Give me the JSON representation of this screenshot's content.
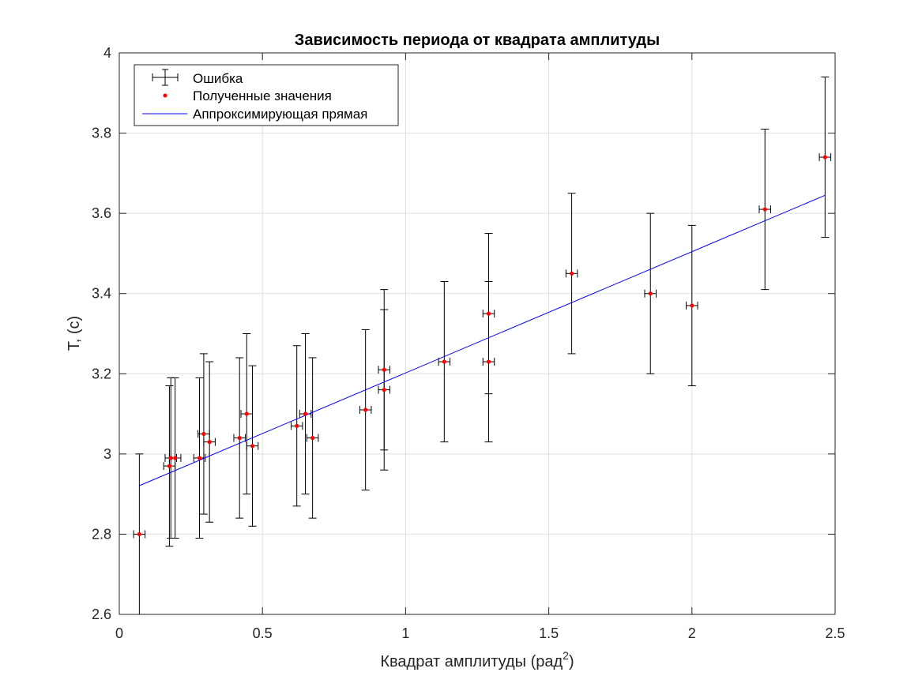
{
  "chart_data": {
    "type": "scatter",
    "title": "Зависимость периода от квадрата амплитуды",
    "xlabel": "Квадрат амплитуды (рад",
    "xlabel_sup": "2",
    "xlabel_end": ")",
    "ylabel": "T, (c)",
    "xlim": [
      0,
      2.5
    ],
    "ylim": [
      2.6,
      4.0
    ],
    "xticks": [
      0,
      0.5,
      1,
      1.5,
      2,
      2.5
    ],
    "xtick_labels": [
      "0",
      "0.5",
      "1",
      "1.5",
      "2",
      "2.5"
    ],
    "yticks": [
      2.6,
      2.8,
      3.0,
      3.2,
      3.4,
      3.6,
      3.8,
      4.0
    ],
    "ytick_labels": [
      "2.6",
      "2.8",
      "3",
      "3.2",
      "3.4",
      "3.6",
      "3.8",
      "4"
    ],
    "grid": true,
    "legend_position": "top-left",
    "legend": [
      {
        "label": "Ошибка",
        "marker": "errorbar",
        "color": "#000000"
      },
      {
        "label": "Полученные значения",
        "marker": "dot",
        "color": "#ff0000"
      },
      {
        "label": "Аппроксимирующая прямая",
        "marker": "line",
        "color": "#0000ff"
      }
    ],
    "series": [
      {
        "type": "errorbar",
        "color": "#000000",
        "x_error": 0.02,
        "y_error": 0.2,
        "points": [
          {
            "x": 0.07,
            "y": 2.8
          },
          {
            "x": 0.175,
            "y": 2.97
          },
          {
            "x": 0.18,
            "y": 2.99
          },
          {
            "x": 0.195,
            "y": 2.99
          },
          {
            "x": 0.28,
            "y": 2.99
          },
          {
            "x": 0.295,
            "y": 3.05
          },
          {
            "x": 0.315,
            "y": 3.03
          },
          {
            "x": 0.42,
            "y": 3.04
          },
          {
            "x": 0.445,
            "y": 3.1
          },
          {
            "x": 0.465,
            "y": 3.02
          },
          {
            "x": 0.62,
            "y": 3.07
          },
          {
            "x": 0.65,
            "y": 3.1
          },
          {
            "x": 0.675,
            "y": 3.04
          },
          {
            "x": 0.86,
            "y": 3.11
          },
          {
            "x": 0.925,
            "y": 3.21
          },
          {
            "x": 0.925,
            "y": 3.16
          },
          {
            "x": 1.135,
            "y": 3.23
          },
          {
            "x": 1.29,
            "y": 3.35
          },
          {
            "x": 1.29,
            "y": 3.23
          },
          {
            "x": 1.58,
            "y": 3.45
          },
          {
            "x": 1.855,
            "y": 3.4
          },
          {
            "x": 2.0,
            "y": 3.37
          },
          {
            "x": 2.255,
            "y": 3.61
          },
          {
            "x": 2.465,
            "y": 3.74
          }
        ]
      },
      {
        "type": "line",
        "color": "#0000ff",
        "x": [
          0.07,
          2.465
        ],
        "y": [
          2.921,
          3.645
        ]
      }
    ]
  }
}
